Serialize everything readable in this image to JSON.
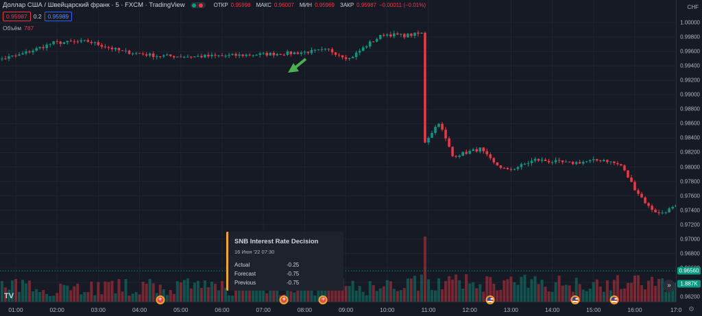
{
  "legend": {
    "symbol": "Доллар США / Швейцарский франк · 5 · FXCM · TradingView",
    "open_label": "ОТКР",
    "open_value": "0.95998",
    "high_label": "МАКС",
    "high_value": "0.96007",
    "low_label": "МИН",
    "low_value": "0.95969",
    "close_label": "ЗАКР",
    "close_value": "0.95987",
    "change_value": "−0.00011 (−0.01%)"
  },
  "quote": {
    "sell": "0.95987",
    "spread": "0.2",
    "buy": "0.95989"
  },
  "volume": {
    "label": "Объём",
    "value": "787"
  },
  "price_axis": {
    "currency": "CHF",
    "ticks": [
      "1.00000",
      "0.99800",
      "0.99600",
      "0.99400",
      "0.99200",
      "0.99000",
      "0.98800",
      "0.98600",
      "0.98400",
      "0.98200",
      "0.98000",
      "0.97800",
      "0.97600",
      "0.97400",
      "0.97200",
      "0.97000",
      "0.96800",
      "0.96600",
      "0.96400",
      "0.96200"
    ],
    "last_price_tag": "0.96560",
    "volume_tag": "1.887K"
  },
  "time_axis": {
    "labels": [
      "01:00",
      "02:00",
      "03:00",
      "04:00",
      "05:00",
      "06:00",
      "07:00",
      "08:00",
      "09:00",
      "10:00",
      "11:00",
      "12:00",
      "13:00",
      "14:00",
      "15:00",
      "16:00",
      "17:0"
    ]
  },
  "tooltip": {
    "title": "SNB Interest Rate Decision",
    "date": "16 Июн '22 07:30",
    "actual_label": "Actual",
    "actual_value": "-0.25",
    "forecast_label": "Forecast",
    "forecast_value": "-0.75",
    "previous_label": "Previous",
    "previous_value": "-0.75"
  },
  "events": [
    {
      "hour": 4.5,
      "type": "ch",
      "name": "chf-event-icon"
    },
    {
      "hour": 7.5,
      "type": "ch",
      "name": "chf-event-icon"
    },
    {
      "hour": 8.45,
      "type": "ch",
      "name": "chf-event-icon"
    },
    {
      "hour": 12.5,
      "type": "us",
      "name": "us-flag-event-icon"
    },
    {
      "hour": 14.55,
      "type": "us",
      "name": "us-flag-event-icon"
    },
    {
      "hour": 15.5,
      "type": "us",
      "name": "us-flag-event-icon"
    }
  ],
  "colors": {
    "up": "#089981",
    "down": "#f23645",
    "background": "#161a25",
    "grid": "#1f2430",
    "last_price_tag": "#089981",
    "volume_tag": "#089981",
    "arrow": "#4caf50"
  },
  "chart_data": {
    "type": "candlestick",
    "timeframe": "5",
    "x_start_hour": 0.25,
    "bar_interval_minutes": 5,
    "ylim": [
      0.961,
      1.0012
    ],
    "anchors": [
      [
        0,
        0.9945
      ],
      [
        10,
        0.9955
      ],
      [
        20,
        0.9972
      ],
      [
        30,
        0.9974
      ],
      [
        40,
        0.996
      ],
      [
        50,
        0.9954
      ],
      [
        60,
        0.9953
      ],
      [
        70,
        0.9954
      ],
      [
        80,
        0.9956
      ],
      [
        90,
        0.9958
      ],
      [
        100,
        0.9962
      ],
      [
        106,
        0.995
      ],
      [
        112,
        0.9972
      ],
      [
        116,
        0.9984
      ],
      [
        122,
        0.9982
      ],
      [
        127,
        0.9985
      ],
      [
        128,
        0.9835
      ],
      [
        132,
        0.9862
      ],
      [
        136,
        0.9815
      ],
      [
        140,
        0.982
      ],
      [
        144,
        0.9825
      ],
      [
        148,
        0.9805
      ],
      [
        152,
        0.9795
      ],
      [
        156,
        0.9802
      ],
      [
        160,
        0.981
      ],
      [
        170,
        0.9805
      ],
      [
        180,
        0.981
      ],
      [
        185,
        0.9802
      ],
      [
        189,
        0.977
      ],
      [
        193,
        0.9745
      ],
      [
        196,
        0.9735
      ],
      [
        201,
        0.9745
      ],
      [
        205,
        0.9738
      ],
      [
        210,
        0.9725
      ],
      [
        214,
        0.972
      ],
      [
        216,
        0.9742
      ],
      [
        219,
        0.9705
      ],
      [
        224,
        0.969
      ],
      [
        230,
        0.9695
      ],
      [
        236,
        0.9685
      ],
      [
        242,
        0.9675
      ],
      [
        248,
        0.966
      ],
      [
        252,
        0.9648
      ],
      [
        256,
        0.9652
      ]
    ]
  }
}
